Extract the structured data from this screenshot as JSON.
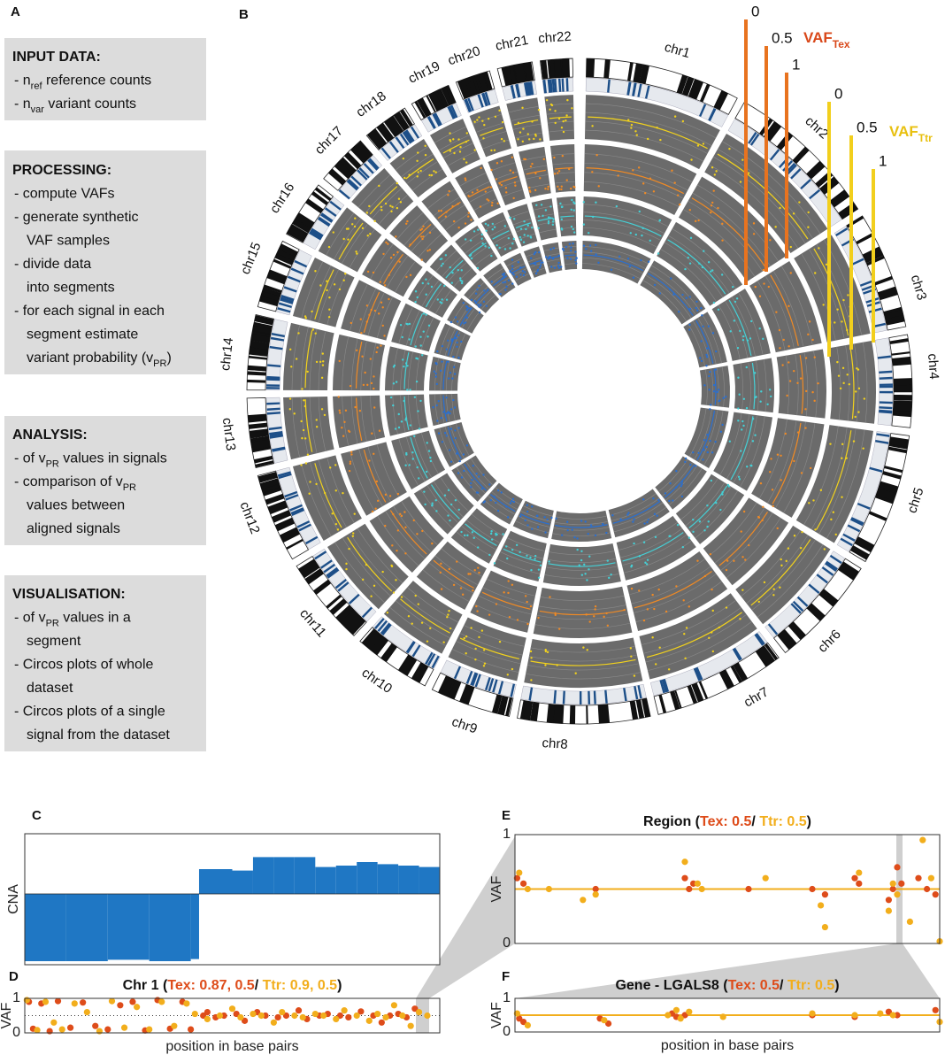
{
  "panel_labels": [
    "A",
    "B",
    "C",
    "D",
    "E",
    "F"
  ],
  "panel_a": {
    "boxes": [
      {
        "title": "INPUT DATA:",
        "lines": [
          [
            {
              "text": "- n"
            },
            {
              "text": "ref",
              "sub": true
            },
            {
              "text": " reference counts"
            }
          ],
          [
            {
              "text": "- n"
            },
            {
              "text": "var",
              "sub": true
            },
            {
              "text": " variant counts"
            }
          ]
        ]
      },
      {
        "title": "PROCESSING:",
        "lines": [
          [
            {
              "text": "- compute VAFs"
            }
          ],
          [
            {
              "text": "- generate synthetic"
            }
          ],
          [
            {
              "text": "VAF samples",
              "indent": true
            }
          ],
          [
            {
              "text": "- divide data"
            }
          ],
          [
            {
              "text": "into segments",
              "indent": true
            }
          ],
          [
            {
              "text": "- for each signal in each"
            }
          ],
          [
            {
              "text": "segment estimate",
              "indent": true
            }
          ],
          [
            {
              "text": "variant probability (v",
              "indent": true
            },
            {
              "text": "PR",
              "sub": true
            },
            {
              "text": ")"
            }
          ]
        ]
      },
      {
        "title": "ANALYSIS:",
        "lines": [
          [
            {
              "text": "- of v"
            },
            {
              "text": "PR",
              "sub": true
            },
            {
              "text": " values in signals"
            }
          ],
          [
            {
              "text": "- comparison of v"
            },
            {
              "text": "PR",
              "sub": true
            }
          ],
          [
            {
              "text": "values between",
              "indent": true
            }
          ],
          [
            {
              "text": "aligned signals",
              "indent": true
            }
          ]
        ]
      },
      {
        "title": "VISUALISATION:",
        "lines": [
          [
            {
              "text": "- of v"
            },
            {
              "text": "PR",
              "sub": true
            },
            {
              "text": " values in a"
            }
          ],
          [
            {
              "text": "segment",
              "indent": true
            }
          ],
          [
            {
              "text": "- Circos plots of whole"
            }
          ],
          [
            {
              "text": "dataset",
              "indent": true
            }
          ],
          [
            {
              "text": "- Circos plots of a single"
            }
          ],
          [
            {
              "text": "signal from the dataset",
              "indent": true
            }
          ]
        ]
      }
    ]
  },
  "circos": {
    "chromosomes": [
      "chr1",
      "chr2",
      "chr3",
      "chr4",
      "chr5",
      "chr6",
      "chr7",
      "chr8",
      "chr9",
      "chr10",
      "chr11",
      "chr12",
      "chr13",
      "chr14",
      "chr15",
      "chr16",
      "chr17",
      "chr18",
      "chr19",
      "chr20",
      "chr21",
      "chr22"
    ],
    "scales": [
      {
        "name": "VAF",
        "sub": "Tex",
        "color": "#e8731f",
        "label_color": "#d9481a",
        "ticks": [
          0,
          0.5,
          1
        ]
      },
      {
        "name": "VAF",
        "sub": "Ttr",
        "color": "#f2cf1d",
        "label_color": "#e8c010",
        "ticks": [
          0,
          0.5,
          1
        ]
      }
    ]
  },
  "chart_data": [
    {
      "type": "step",
      "ylabel": "CNA",
      "color": "#1f77c4",
      "xlim": [
        0,
        100
      ],
      "ylim": [
        -1,
        0.85
      ],
      "x": [
        0,
        10,
        20,
        30,
        40,
        42,
        50,
        55,
        60,
        65,
        70,
        75,
        80,
        85,
        90,
        95
      ],
      "values": [
        -0.95,
        -0.95,
        -0.93,
        -0.95,
        -0.92,
        0.35,
        0.33,
        0.52,
        0.52,
        0.52,
        0.38,
        0.4,
        0.45,
        0.42,
        0.4,
        0.38
      ]
    },
    {
      "type": "scatter",
      "title_parts": [
        {
          "text": "Chr 1 ("
        },
        {
          "text": "Tex: 0.87, 0.5",
          "series": 0
        },
        {
          "text": "/ "
        },
        {
          "text": "Ttr: 0.9, 0.5",
          "series": 1
        },
        {
          "text": ")"
        }
      ],
      "ylabel": "VAF",
      "xlabel": "position in base pairs",
      "xlim": [
        0,
        100
      ],
      "ylim": [
        0,
        1
      ],
      "yticks": [
        0,
        1
      ],
      "series": [
        {
          "name": "Tex",
          "color": "#de4c1a",
          "x": [
            1,
            2,
            4,
            6,
            8,
            11,
            14,
            17,
            20,
            23,
            26,
            29,
            32,
            35,
            38,
            40,
            43,
            44,
            46,
            48,
            51,
            53,
            56,
            58,
            61,
            63,
            66,
            68,
            71,
            73,
            76,
            78,
            81,
            84,
            86,
            88,
            90,
            92,
            94
          ],
          "values": [
            0.9,
            0.12,
            0.85,
            0.05,
            0.92,
            0.15,
            0.88,
            0.2,
            0.1,
            0.8,
            0.9,
            0.07,
            0.95,
            0.12,
            0.9,
            0.1,
            0.5,
            0.6,
            0.45,
            0.5,
            0.55,
            0.35,
            0.6,
            0.5,
            0.45,
            0.5,
            0.65,
            0.4,
            0.5,
            0.55,
            0.5,
            0.45,
            0.62,
            0.5,
            0.3,
            0.5,
            0.55,
            0.45,
            0.7
          ]
        },
        {
          "name": "Ttr",
          "color": "#f2ae1c",
          "x": [
            0.5,
            3,
            5,
            7,
            9,
            12,
            15,
            18,
            21,
            24,
            27,
            30,
            33,
            36,
            39,
            41,
            44,
            47,
            50,
            52,
            55,
            57,
            60,
            62,
            65,
            67,
            70,
            72,
            75,
            77,
            80,
            83,
            85,
            87,
            89,
            91,
            93,
            95,
            97
          ],
          "values": [
            0.95,
            0.08,
            0.9,
            0.3,
            0.1,
            0.85,
            0.6,
            0.05,
            0.92,
            0.15,
            0.75,
            0.1,
            0.9,
            0.2,
            0.85,
            0.55,
            0.4,
            0.5,
            0.7,
            0.45,
            0.55,
            0.5,
            0.3,
            0.6,
            0.5,
            0.45,
            0.55,
            0.5,
            0.4,
            0.65,
            0.5,
            0.35,
            0.55,
            0.45,
            0.8,
            0.5,
            0.2,
            0.6,
            0.5
          ]
        }
      ]
    },
    {
      "type": "scatter",
      "title_parts": [
        {
          "text": "Region ("
        },
        {
          "text": "Tex: 0.5",
          "series": 0
        },
        {
          "text": "/ "
        },
        {
          "text": "Ttr: 0.5",
          "series": 1
        },
        {
          "text": ")"
        }
      ],
      "ylabel": "VAF",
      "xlim": [
        0,
        100
      ],
      "ylim": [
        0,
        1
      ],
      "yticks": [
        0,
        1
      ],
      "series": [
        {
          "name": "Tex",
          "color": "#de4c1a",
          "level": 0.5,
          "x": [
            0.5,
            2,
            19,
            40,
            41,
            42,
            55,
            70,
            73,
            80,
            81,
            88,
            89,
            90,
            91,
            95,
            97,
            99
          ],
          "values": [
            0.6,
            0.55,
            0.5,
            0.6,
            0.5,
            0.55,
            0.5,
            0.5,
            0.45,
            0.6,
            0.55,
            0.4,
            0.5,
            0.7,
            0.55,
            0.6,
            0.5,
            0.45
          ]
        },
        {
          "name": "Ttr",
          "color": "#f2ae1c",
          "level": 0.5,
          "x": [
            1,
            3,
            8,
            16,
            19,
            40,
            43,
            44,
            59,
            72,
            73,
            81,
            88,
            89,
            90,
            93,
            96,
            98,
            100
          ],
          "values": [
            0.65,
            0.5,
            0.5,
            0.4,
            0.45,
            0.75,
            0.55,
            0.5,
            0.6,
            0.35,
            0.15,
            0.65,
            0.3,
            0.55,
            0.45,
            0.2,
            0.95,
            0.6,
            0.02
          ]
        }
      ]
    },
    {
      "type": "scatter",
      "title_parts": [
        {
          "text": "Gene - LGALS8 ("
        },
        {
          "text": "Tex: 0.5",
          "series": 0
        },
        {
          "text": "/ "
        },
        {
          "text": "Ttr: 0.5",
          "series": 1
        },
        {
          "text": ")"
        }
      ],
      "ylabel": "VAF",
      "xlabel": "position in base pairs",
      "xlim": [
        0,
        100
      ],
      "ylim": [
        0,
        1
      ],
      "yticks": [
        0,
        1
      ],
      "series": [
        {
          "name": "Tex",
          "color": "#de4c1a",
          "level": 0.5,
          "x": [
            1,
            2,
            20,
            22,
            37,
            38,
            40,
            70,
            80,
            88,
            90,
            99
          ],
          "values": [
            0.4,
            0.3,
            0.4,
            0.25,
            0.55,
            0.45,
            0.5,
            0.5,
            0.45,
            0.6,
            0.5,
            0.65
          ]
        },
        {
          "name": "Ttr",
          "color": "#f2ae1c",
          "level": 0.5,
          "x": [
            0.5,
            3,
            21,
            36,
            38,
            39,
            41,
            49,
            70,
            80,
            86,
            89,
            100
          ],
          "values": [
            0.55,
            0.2,
            0.35,
            0.5,
            0.65,
            0.4,
            0.6,
            0.45,
            0.55,
            0.5,
            0.55,
            0.5,
            0.3
          ]
        }
      ]
    }
  ]
}
